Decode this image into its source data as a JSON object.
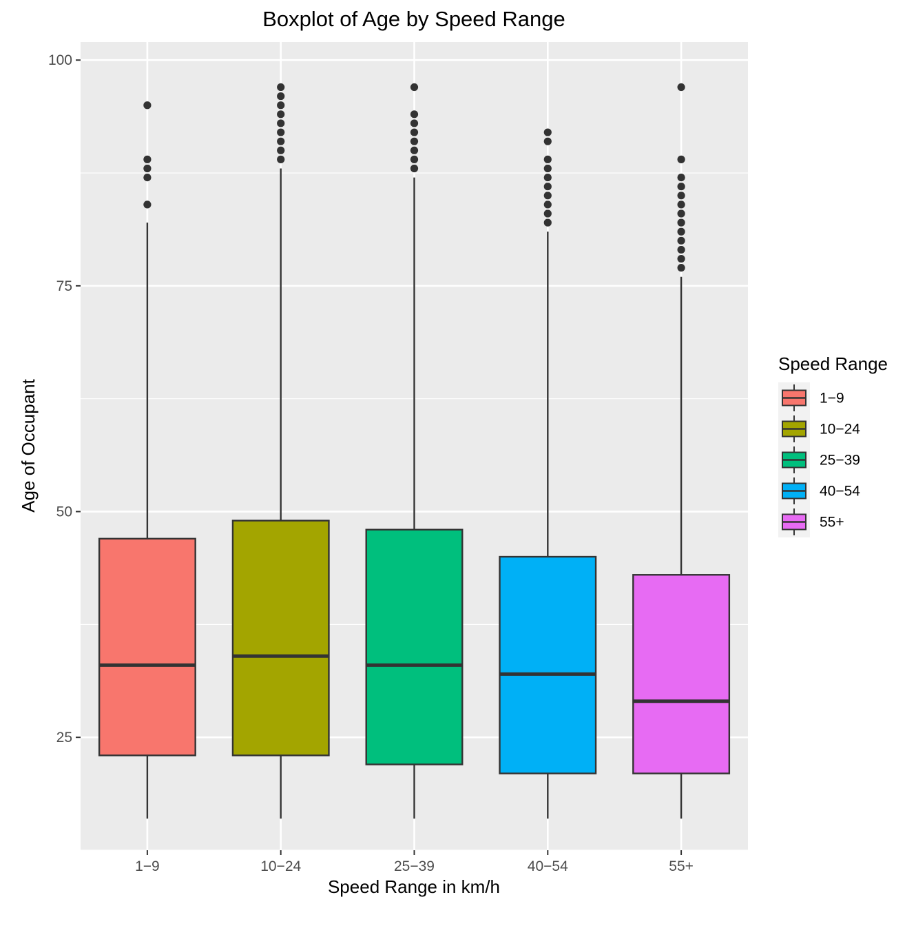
{
  "chart_data": {
    "type": "boxplot",
    "title": "Boxplot of Age by Speed Range",
    "xlabel": "Speed Range in km/h",
    "ylabel": "Age of Occupant",
    "ylim": [
      12.5,
      102
    ],
    "yticks": [
      25,
      50,
      75,
      100
    ],
    "yticks_labels": [
      "25",
      "50",
      "75",
      "100"
    ],
    "grid": true,
    "legend": {
      "title": "Speed Range",
      "placement": "right"
    },
    "categories": [
      "1−9",
      "10−24",
      "25−39",
      "40−54",
      "55+"
    ],
    "series": [
      {
        "name": "1−9",
        "color": "#F8766D",
        "whisker_low": 16,
        "q1": 23,
        "median": 33,
        "q3": 47,
        "whisker_high": 82,
        "outliers": [
          84,
          87,
          88,
          89,
          95
        ]
      },
      {
        "name": "10−24",
        "color": "#A3A500",
        "whisker_low": 16,
        "q1": 23,
        "median": 34,
        "q3": 49,
        "whisker_high": 88,
        "outliers": [
          89,
          90,
          91,
          92,
          93,
          94,
          95,
          96,
          97
        ]
      },
      {
        "name": "25−39",
        "color": "#00BF7D",
        "whisker_low": 16,
        "q1": 22,
        "median": 33,
        "q3": 48,
        "whisker_high": 87,
        "outliers": [
          88,
          89,
          90,
          91,
          92,
          93,
          94,
          97
        ]
      },
      {
        "name": "40−54",
        "color": "#00B0F6",
        "whisker_low": 16,
        "q1": 21,
        "median": 32,
        "q3": 45,
        "whisker_high": 81,
        "outliers": [
          82,
          83,
          84,
          85,
          86,
          87,
          88,
          89,
          91,
          92
        ]
      },
      {
        "name": "55+",
        "color": "#E76BF3",
        "whisker_low": 16,
        "q1": 21,
        "median": 29,
        "q3": 43,
        "whisker_high": 76,
        "outliers": [
          77,
          78,
          79,
          80,
          81,
          82,
          83,
          84,
          85,
          86,
          87,
          89,
          97
        ]
      }
    ]
  }
}
